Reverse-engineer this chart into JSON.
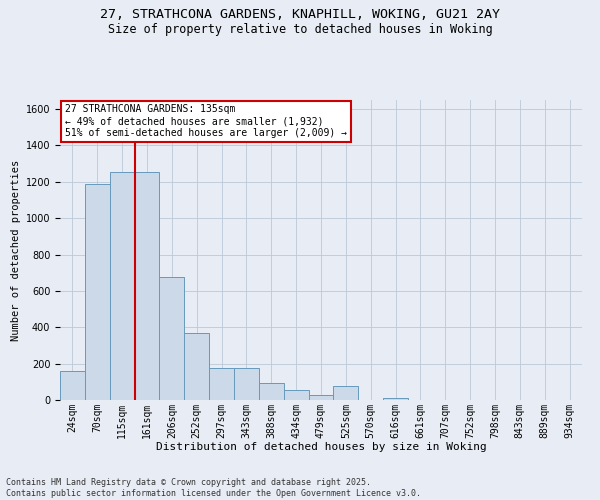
{
  "title_line1": "27, STRATHCONA GARDENS, KNAPHILL, WOKING, GU21 2AY",
  "title_line2": "Size of property relative to detached houses in Woking",
  "xlabel": "Distribution of detached houses by size in Woking",
  "ylabel": "Number of detached properties",
  "categories": [
    "24sqm",
    "70sqm",
    "115sqm",
    "161sqm",
    "206sqm",
    "252sqm",
    "297sqm",
    "343sqm",
    "388sqm",
    "434sqm",
    "479sqm",
    "525sqm",
    "570sqm",
    "616sqm",
    "661sqm",
    "707sqm",
    "752sqm",
    "798sqm",
    "843sqm",
    "889sqm",
    "934sqm"
  ],
  "values": [
    160,
    1190,
    1255,
    1255,
    675,
    370,
    175,
    175,
    95,
    55,
    25,
    75,
    0,
    10,
    0,
    0,
    0,
    0,
    0,
    0,
    0
  ],
  "bar_color": "#ccd9e8",
  "bar_edge_color": "#6699bb",
  "grid_color": "#bbc8d8",
  "background_color": "#e8edf5",
  "vline_x": 2.5,
  "vline_color": "#cc0000",
  "annotation_text": "27 STRATHCONA GARDENS: 135sqm\n← 49% of detached houses are smaller (1,932)\n51% of semi-detached houses are larger (2,009) →",
  "annotation_box_color": "#cc0000",
  "footer_line1": "Contains HM Land Registry data © Crown copyright and database right 2025.",
  "footer_line2": "Contains public sector information licensed under the Open Government Licence v3.0.",
  "ylim": [
    0,
    1650
  ],
  "yticks": [
    0,
    200,
    400,
    600,
    800,
    1000,
    1200,
    1400,
    1600
  ],
  "title_fontsize": 9.5,
  "subtitle_fontsize": 8.5,
  "xlabel_fontsize": 8,
  "ylabel_fontsize": 7.5,
  "tick_fontsize": 7,
  "annot_fontsize": 7,
  "footer_fontsize": 6
}
